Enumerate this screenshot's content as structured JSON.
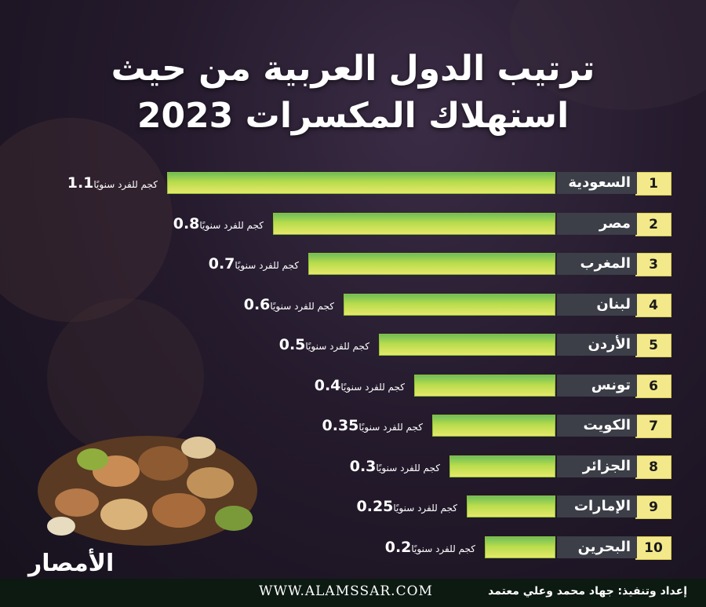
{
  "title_line1": "ترتيب الدول العربية من حيث",
  "title_line2": "استهلاك المكسرات 2023",
  "unit_label": "كجم للفرد سنويًا",
  "footer": {
    "website": "WWW.ALAMSSAR.COM",
    "credit": "إعداد وتنفيذ: جهاد محمد وعلي معتمد"
  },
  "logo_text": "الأمصار",
  "colors": {
    "rank_bg": "#f3e98b",
    "country_bg": "#3c3e48",
    "bar_top": "#6fbe5a",
    "bar_bottom": "#e6e86a",
    "footer_bg": "#0c1a12"
  },
  "chart_data": {
    "type": "bar",
    "orientation": "horizontal",
    "title": "ترتيب الدول العربية من حيث استهلاك المكسرات 2023",
    "xlabel": "",
    "ylabel": "",
    "categories": [
      "السعودية",
      "مصر",
      "المغرب",
      "لبنان",
      "الأردن",
      "تونس",
      "الكويت",
      "الجزائر",
      "الإمارات",
      "البحرين"
    ],
    "ranks": [
      "1",
      "2",
      "3",
      "4",
      "5",
      "6",
      "7",
      "8",
      "9",
      "10"
    ],
    "values": [
      1.1,
      0.8,
      0.7,
      0.6,
      0.5,
      0.4,
      0.35,
      0.3,
      0.25,
      0.2
    ],
    "value_labels": [
      "1.1",
      "0.8",
      "0.7",
      "0.6",
      "0.5",
      "0.4",
      "0.35",
      "0.3",
      "0.25",
      "0.2"
    ],
    "xlim": [
      0,
      1.1
    ],
    "grid": false,
    "legend": "none"
  }
}
